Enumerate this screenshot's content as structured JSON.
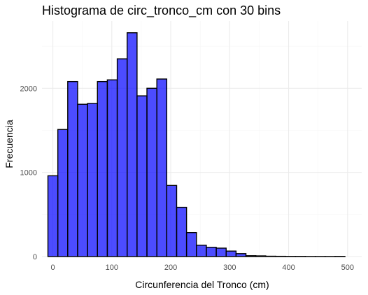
{
  "chart_data": {
    "type": "bar",
    "title": "Histograma de circ_tronco_cm con 30 bins",
    "xlabel": "Circunferencia del Tronco (cm)",
    "ylabel": "Frecuencia",
    "bin_width": 16.8,
    "x_ticks": [
      0,
      100,
      200,
      300,
      400,
      500
    ],
    "y_ticks": [
      0,
      1000,
      2000
    ],
    "xlim": [
      -18.5,
      524
    ],
    "ylim": [
      0,
      2800
    ],
    "grid": true,
    "bar_fill": "#0000ff",
    "bar_fill_opacity": 0.7,
    "bar_stroke": "#000000",
    "bins": [
      {
        "center": 0,
        "count": 960
      },
      {
        "center": 16.8,
        "count": 1510
      },
      {
        "center": 33.6,
        "count": 2080
      },
      {
        "center": 50.4,
        "count": 1810
      },
      {
        "center": 67.2,
        "count": 1820
      },
      {
        "center": 84,
        "count": 2080
      },
      {
        "center": 100.8,
        "count": 2100
      },
      {
        "center": 117.6,
        "count": 2350
      },
      {
        "center": 134.4,
        "count": 2660
      },
      {
        "center": 151.2,
        "count": 1910
      },
      {
        "center": 168,
        "count": 2000
      },
      {
        "center": 184.8,
        "count": 2110
      },
      {
        "center": 201.6,
        "count": 845
      },
      {
        "center": 218.4,
        "count": 585
      },
      {
        "center": 235.2,
        "count": 285
      },
      {
        "center": 252,
        "count": 135
      },
      {
        "center": 268.8,
        "count": 110
      },
      {
        "center": 285.6,
        "count": 100
      },
      {
        "center": 302.4,
        "count": 65
      },
      {
        "center": 319.2,
        "count": 35
      },
      {
        "center": 336,
        "count": 10
      },
      {
        "center": 352.8,
        "count": 8
      },
      {
        "center": 369.6,
        "count": 4
      },
      {
        "center": 386.4,
        "count": 3
      },
      {
        "center": 403.2,
        "count": 2
      },
      {
        "center": 420,
        "count": 2
      },
      {
        "center": 436.8,
        "count": 1
      },
      {
        "center": 453.6,
        "count": 1
      },
      {
        "center": 470.4,
        "count": 1
      },
      {
        "center": 487.2,
        "count": 2
      }
    ]
  }
}
